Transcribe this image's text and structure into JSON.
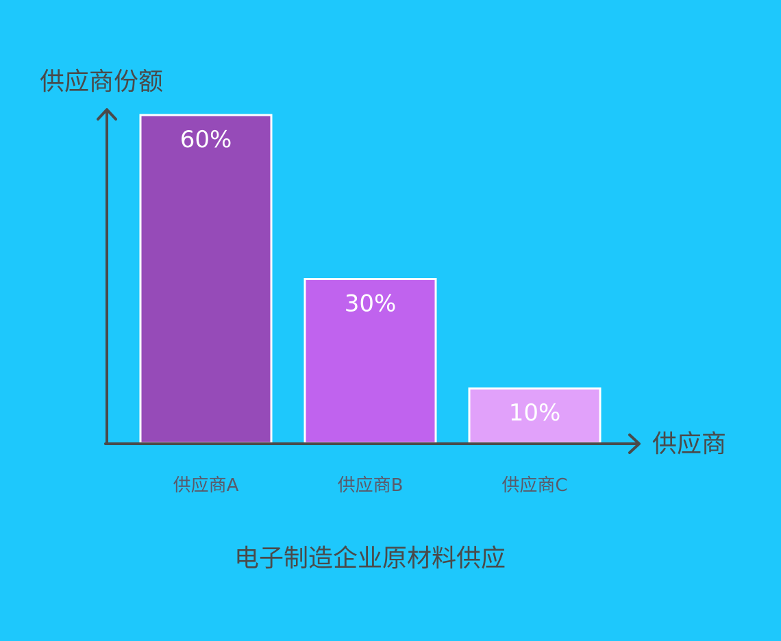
{
  "chart_data": {
    "type": "bar",
    "title": "电子制造企业原材料供应",
    "xlabel": "供应商",
    "ylabel": "供应商份额",
    "categories": [
      "供应商A",
      "供应商B",
      "供应商C"
    ],
    "values": [
      60,
      30,
      10
    ],
    "value_labels": [
      "60%",
      "30%",
      "10%"
    ],
    "unit": "%",
    "ylim": [
      0,
      60
    ],
    "grid": false,
    "legend": "none",
    "colors": {
      "background": "#1ec8fc",
      "axis": "#4a4a4a",
      "bar_border": "#ffffff",
      "bars": [
        "#964bb8",
        "#c063ee",
        "#e1a1fa"
      ],
      "bar_label": "#ffffff",
      "category_label": "#5a5a6a"
    }
  }
}
